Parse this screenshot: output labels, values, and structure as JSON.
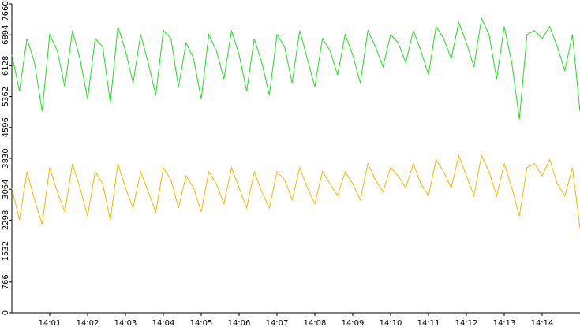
{
  "chart_data": {
    "type": "line",
    "x": [
      840,
      840.2,
      840.4,
      840.6,
      840.8,
      841,
      841.2,
      841.4,
      841.6,
      841.8,
      842,
      842.2,
      842.4,
      842.6,
      842.8,
      843,
      843.2,
      843.4,
      843.6,
      843.8,
      844,
      844.2,
      844.4,
      844.6,
      844.8,
      845,
      845.2,
      845.4,
      845.6,
      845.8,
      846,
      846.2,
      846.4,
      846.6,
      846.8,
      847,
      847.2,
      847.4,
      847.6,
      847.8,
      848,
      848.2,
      848.4,
      848.6,
      848.8,
      849,
      849.2,
      849.4,
      849.6,
      849.8,
      850,
      850.2,
      850.4,
      850.6,
      850.8,
      851,
      851.2,
      851.4,
      851.6,
      851.8,
      852,
      852.2,
      852.4,
      852.6,
      852.8,
      853,
      853.2,
      853.4,
      853.6,
      853.8,
      854,
      854.2,
      854.4,
      854.6,
      854.8,
      855
    ],
    "series": [
      {
        "color": "#22dd22",
        "values": [
          6400,
          5500,
          6800,
          6200,
          5000,
          6900,
          6500,
          5600,
          7000,
          6300,
          5300,
          6800,
          6600,
          5200,
          7100,
          6500,
          5700,
          6900,
          6200,
          5400,
          7000,
          6800,
          5600,
          6700,
          6300,
          5300,
          6900,
          6500,
          5800,
          7000,
          6400,
          5500,
          6800,
          6200,
          5400,
          6900,
          6600,
          5700,
          7000,
          6300,
          5600,
          6800,
          6500,
          5900,
          6900,
          6400,
          5700,
          7000,
          6600,
          6100,
          6900,
          6700,
          6200,
          7000,
          6500,
          5900,
          7100,
          6800,
          6300,
          7200,
          6700,
          6100,
          7300,
          6900,
          5800,
          7100,
          6200,
          4800,
          6900,
          7000,
          6800,
          7100,
          6600,
          6000,
          6900,
          5000
        ]
      },
      {
        "color": "#f2b800",
        "values": [
          3100,
          2300,
          3500,
          2800,
          2200,
          3600,
          3000,
          2500,
          3700,
          3100,
          2400,
          3500,
          3200,
          2300,
          3700,
          3100,
          2600,
          3500,
          3000,
          2500,
          3600,
          3300,
          2600,
          3400,
          3100,
          2500,
          3500,
          3200,
          2700,
          3600,
          3100,
          2600,
          3500,
          3000,
          2600,
          3500,
          3300,
          2800,
          3600,
          3100,
          2700,
          3500,
          3200,
          2900,
          3500,
          3200,
          2800,
          3700,
          3300,
          3000,
          3600,
          3400,
          3100,
          3700,
          3200,
          2900,
          3800,
          3500,
          3100,
          3900,
          3400,
          2900,
          3900,
          3500,
          2900,
          3700,
          3100,
          2400,
          3600,
          3700,
          3400,
          3800,
          3200,
          2900,
          3600,
          2100
        ]
      }
    ],
    "xlim": [
      840,
      855
    ],
    "xticks": [
      {
        "value": 841,
        "label": "14:01"
      },
      {
        "value": 842,
        "label": "14:02"
      },
      {
        "value": 843,
        "label": "14:03"
      },
      {
        "value": 844,
        "label": "14:04"
      },
      {
        "value": 845,
        "label": "14:05"
      },
      {
        "value": 846,
        "label": "14:06"
      },
      {
        "value": 847,
        "label": "14:07"
      },
      {
        "value": 848,
        "label": "14:08"
      },
      {
        "value": 849,
        "label": "14:09"
      },
      {
        "value": 850,
        "label": "14:10"
      },
      {
        "value": 851,
        "label": "14:11"
      },
      {
        "value": 852,
        "label": "14:12"
      },
      {
        "value": 853,
        "label": "14:13"
      },
      {
        "value": 854,
        "label": "14:14"
      }
    ],
    "ylim": [
      0,
      7660
    ],
    "yticks": [
      0,
      766,
      1532,
      2298,
      3064,
      3830,
      4596,
      5362,
      6128,
      6894,
      7660
    ]
  }
}
